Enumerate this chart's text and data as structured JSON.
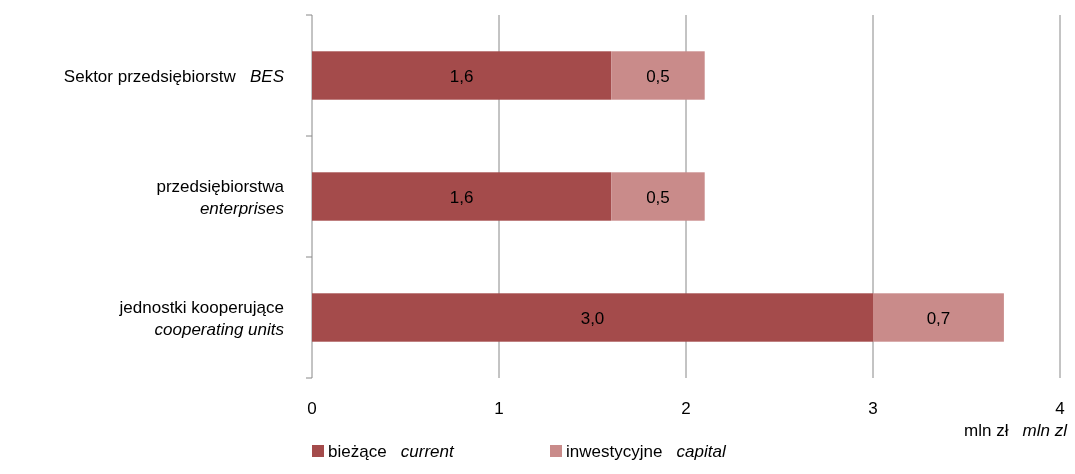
{
  "chart_data": {
    "type": "bar",
    "orientation": "horizontal",
    "stacked": true,
    "categories": [
      "Sektor przedsiębiorstw   BES",
      "przedsiębiorstwa\nenterprises",
      "jednostki kooperujące\ncooperating units"
    ],
    "series": [
      {
        "name": "bieżące   current",
        "color": "#a44b4b",
        "values": [
          1.6,
          1.6,
          3.0
        ],
        "value_labels": [
          "1,6",
          "1,6",
          "3,0"
        ]
      },
      {
        "name": "inwestycyjne   capital",
        "color": "#c98b8a",
        "values": [
          0.5,
          0.5,
          0.7
        ],
        "value_labels": [
          "0,5",
          "0,5",
          "0,7"
        ]
      }
    ],
    "xlim": [
      0,
      4
    ],
    "xticks": [
      0,
      1,
      2,
      3,
      4
    ],
    "xlabel": "mln zł   mln zl",
    "grid": "x",
    "legend": "bottom"
  }
}
